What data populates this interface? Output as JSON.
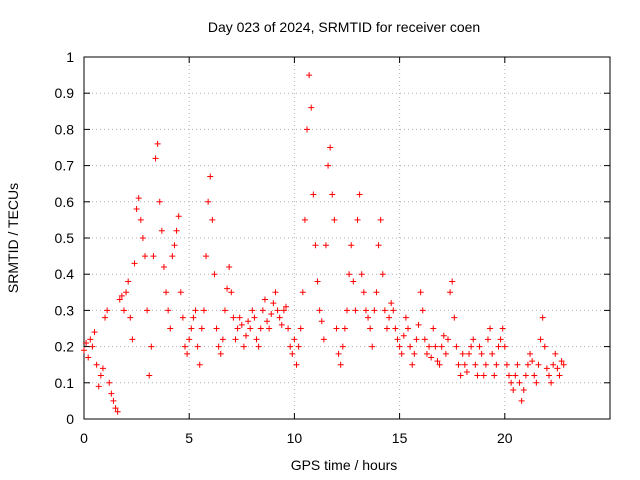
{
  "chart_data": {
    "type": "scatter",
    "title": "Day 023 of 2024, SRMTID for receiver coen",
    "xlabel": "GPS time / hours",
    "ylabel": "SRMTID / TECUs",
    "xlim": [
      0,
      25
    ],
    "ylim": [
      0,
      1
    ],
    "x_ticks": [
      0,
      5,
      10,
      15,
      20
    ],
    "y_ticks": [
      0,
      0.1,
      0.2,
      0.3,
      0.4,
      0.5,
      0.6,
      0.7,
      0.8,
      0.9,
      1
    ],
    "x_tick_labels": [
      "0",
      "5",
      "10",
      "15",
      "20"
    ],
    "y_tick_labels": [
      "0",
      "0.1",
      "0.2",
      "0.3",
      "0.4",
      "0.5",
      "0.6",
      "0.7",
      "0.8",
      "0.9",
      "1"
    ],
    "grid": true,
    "marker": "+",
    "color": "#ff0000",
    "series": [
      {
        "name": "SRMTID",
        "points": [
          [
            0.0,
            0.19
          ],
          [
            0.1,
            0.21
          ],
          [
            0.2,
            0.17
          ],
          [
            0.3,
            0.22
          ],
          [
            0.4,
            0.2
          ],
          [
            0.5,
            0.24
          ],
          [
            0.6,
            0.15
          ],
          [
            0.7,
            0.09
          ],
          [
            0.8,
            0.12
          ],
          [
            0.9,
            0.14
          ],
          [
            1.0,
            0.28
          ],
          [
            1.1,
            0.3
          ],
          [
            1.2,
            0.1
          ],
          [
            1.3,
            0.07
          ],
          [
            1.4,
            0.05
          ],
          [
            1.5,
            0.03
          ],
          [
            1.6,
            0.02
          ],
          [
            1.7,
            0.33
          ],
          [
            1.8,
            0.34
          ],
          [
            1.9,
            0.3
          ],
          [
            2.0,
            0.35
          ],
          [
            2.1,
            0.38
          ],
          [
            2.2,
            0.28
          ],
          [
            2.3,
            0.22
          ],
          [
            2.4,
            0.43
          ],
          [
            2.5,
            0.58
          ],
          [
            2.6,
            0.61
          ],
          [
            2.7,
            0.55
          ],
          [
            2.8,
            0.5
          ],
          [
            2.9,
            0.45
          ],
          [
            3.0,
            0.3
          ],
          [
            3.1,
            0.12
          ],
          [
            3.2,
            0.2
          ],
          [
            3.3,
            0.45
          ],
          [
            3.4,
            0.72
          ],
          [
            3.5,
            0.76
          ],
          [
            3.6,
            0.6
          ],
          [
            3.7,
            0.52
          ],
          [
            3.8,
            0.42
          ],
          [
            3.9,
            0.35
          ],
          [
            4.0,
            0.3
          ],
          [
            4.1,
            0.25
          ],
          [
            4.2,
            0.45
          ],
          [
            4.3,
            0.48
          ],
          [
            4.4,
            0.52
          ],
          [
            4.5,
            0.56
          ],
          [
            4.6,
            0.35
          ],
          [
            4.7,
            0.28
          ],
          [
            4.8,
            0.2
          ],
          [
            4.9,
            0.18
          ],
          [
            5.0,
            0.22
          ],
          [
            5.1,
            0.25
          ],
          [
            5.2,
            0.28
          ],
          [
            5.3,
            0.3
          ],
          [
            5.4,
            0.2
          ],
          [
            5.5,
            0.15
          ],
          [
            5.6,
            0.25
          ],
          [
            5.7,
            0.3
          ],
          [
            5.8,
            0.45
          ],
          [
            5.9,
            0.6
          ],
          [
            6.0,
            0.67
          ],
          [
            6.1,
            0.55
          ],
          [
            6.2,
            0.4
          ],
          [
            6.3,
            0.25
          ],
          [
            6.4,
            0.2
          ],
          [
            6.5,
            0.18
          ],
          [
            6.6,
            0.22
          ],
          [
            6.7,
            0.3
          ],
          [
            6.8,
            0.36
          ],
          [
            6.9,
            0.42
          ],
          [
            7.0,
            0.35
          ],
          [
            7.1,
            0.28
          ],
          [
            7.2,
            0.22
          ],
          [
            7.3,
            0.25
          ],
          [
            7.4,
            0.28
          ],
          [
            7.5,
            0.26
          ],
          [
            7.6,
            0.2
          ],
          [
            7.7,
            0.23
          ],
          [
            7.8,
            0.27
          ],
          [
            7.9,
            0.25
          ],
          [
            8.0,
            0.3
          ],
          [
            8.1,
            0.28
          ],
          [
            8.2,
            0.22
          ],
          [
            8.3,
            0.2
          ],
          [
            8.4,
            0.25
          ],
          [
            8.5,
            0.3
          ],
          [
            8.6,
            0.33
          ],
          [
            8.7,
            0.27
          ],
          [
            8.8,
            0.25
          ],
          [
            8.9,
            0.29
          ],
          [
            9.0,
            0.32
          ],
          [
            9.1,
            0.35
          ],
          [
            9.2,
            0.3
          ],
          [
            9.3,
            0.28
          ],
          [
            9.4,
            0.26
          ],
          [
            9.5,
            0.3
          ],
          [
            9.6,
            0.31
          ],
          [
            9.7,
            0.25
          ],
          [
            9.8,
            0.2
          ],
          [
            9.9,
            0.18
          ],
          [
            10.0,
            0.22
          ],
          [
            10.1,
            0.15
          ],
          [
            10.2,
            0.2
          ],
          [
            10.3,
            0.25
          ],
          [
            10.4,
            0.35
          ],
          [
            10.5,
            0.55
          ],
          [
            10.6,
            0.8
          ],
          [
            10.7,
            0.95
          ],
          [
            10.8,
            0.86
          ],
          [
            10.9,
            0.62
          ],
          [
            11.0,
            0.48
          ],
          [
            11.1,
            0.38
          ],
          [
            11.2,
            0.3
          ],
          [
            11.3,
            0.27
          ],
          [
            11.4,
            0.22
          ],
          [
            11.5,
            0.48
          ],
          [
            11.6,
            0.7
          ],
          [
            11.7,
            0.75
          ],
          [
            11.8,
            0.62
          ],
          [
            11.9,
            0.55
          ],
          [
            12.0,
            0.25
          ],
          [
            12.1,
            0.18
          ],
          [
            12.2,
            0.15
          ],
          [
            12.3,
            0.2
          ],
          [
            12.4,
            0.25
          ],
          [
            12.5,
            0.3
          ],
          [
            12.6,
            0.4
          ],
          [
            12.7,
            0.48
          ],
          [
            12.8,
            0.38
          ],
          [
            12.9,
            0.3
          ],
          [
            13.0,
            0.55
          ],
          [
            13.1,
            0.62
          ],
          [
            13.2,
            0.4
          ],
          [
            13.3,
            0.35
          ],
          [
            13.4,
            0.3
          ],
          [
            13.5,
            0.28
          ],
          [
            13.6,
            0.25
          ],
          [
            13.7,
            0.2
          ],
          [
            13.8,
            0.3
          ],
          [
            13.9,
            0.35
          ],
          [
            14.0,
            0.48
          ],
          [
            14.1,
            0.55
          ],
          [
            14.2,
            0.4
          ],
          [
            14.3,
            0.3
          ],
          [
            14.4,
            0.25
          ],
          [
            14.5,
            0.28
          ],
          [
            14.6,
            0.32
          ],
          [
            14.7,
            0.3
          ],
          [
            14.8,
            0.25
          ],
          [
            14.9,
            0.22
          ],
          [
            15.0,
            0.2
          ],
          [
            15.1,
            0.18
          ],
          [
            15.2,
            0.23
          ],
          [
            15.3,
            0.28
          ],
          [
            15.4,
            0.25
          ],
          [
            15.5,
            0.2
          ],
          [
            15.6,
            0.15
          ],
          [
            15.7,
            0.18
          ],
          [
            15.8,
            0.22
          ],
          [
            15.9,
            0.26
          ],
          [
            16.0,
            0.35
          ],
          [
            16.1,
            0.3
          ],
          [
            16.2,
            0.22
          ],
          [
            16.3,
            0.18
          ],
          [
            16.4,
            0.2
          ],
          [
            16.5,
            0.17
          ],
          [
            16.6,
            0.25
          ],
          [
            16.7,
            0.2
          ],
          [
            16.8,
            0.16
          ],
          [
            16.9,
            0.15
          ],
          [
            17.0,
            0.2
          ],
          [
            17.1,
            0.23
          ],
          [
            17.2,
            0.18
          ],
          [
            17.3,
            0.22
          ],
          [
            17.4,
            0.35
          ],
          [
            17.5,
            0.38
          ],
          [
            17.6,
            0.28
          ],
          [
            17.7,
            0.2
          ],
          [
            17.8,
            0.15
          ],
          [
            17.9,
            0.12
          ],
          [
            18.0,
            0.18
          ],
          [
            18.1,
            0.15
          ],
          [
            18.2,
            0.13
          ],
          [
            18.3,
            0.18
          ],
          [
            18.4,
            0.2
          ],
          [
            18.5,
            0.22
          ],
          [
            18.6,
            0.15
          ],
          [
            18.7,
            0.12
          ],
          [
            18.8,
            0.2
          ],
          [
            18.9,
            0.18
          ],
          [
            19.0,
            0.12
          ],
          [
            19.1,
            0.15
          ],
          [
            19.2,
            0.22
          ],
          [
            19.3,
            0.25
          ],
          [
            19.4,
            0.18
          ],
          [
            19.5,
            0.12
          ],
          [
            19.6,
            0.15
          ],
          [
            19.7,
            0.2
          ],
          [
            19.8,
            0.22
          ],
          [
            19.9,
            0.25
          ],
          [
            20.0,
            0.2
          ],
          [
            20.1,
            0.15
          ],
          [
            20.2,
            0.12
          ],
          [
            20.3,
            0.1
          ],
          [
            20.4,
            0.08
          ],
          [
            20.5,
            0.12
          ],
          [
            20.6,
            0.15
          ],
          [
            20.7,
            0.1
          ],
          [
            20.8,
            0.05
          ],
          [
            20.9,
            0.08
          ],
          [
            21.0,
            0.12
          ],
          [
            21.1,
            0.15
          ],
          [
            21.2,
            0.18
          ],
          [
            21.3,
            0.16
          ],
          [
            21.4,
            0.12
          ],
          [
            21.5,
            0.1
          ],
          [
            21.6,
            0.15
          ],
          [
            21.7,
            0.22
          ],
          [
            21.8,
            0.28
          ],
          [
            21.9,
            0.2
          ],
          [
            22.0,
            0.14
          ],
          [
            22.1,
            0.12
          ],
          [
            22.2,
            0.1
          ],
          [
            22.3,
            0.15
          ],
          [
            22.4,
            0.18
          ],
          [
            22.5,
            0.14
          ],
          [
            22.6,
            0.12
          ],
          [
            22.7,
            0.16
          ],
          [
            22.8,
            0.15
          ]
        ]
      }
    ]
  }
}
